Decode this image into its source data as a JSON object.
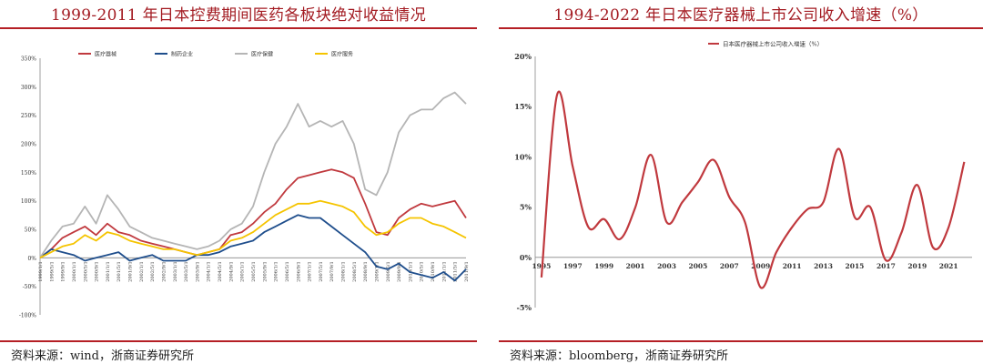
{
  "left": {
    "title": "1999-2011 年日本控费期间医药各板块绝对收益情况",
    "source": "资料来源：wind，浙商证券研究所"
  },
  "right": {
    "title": "1994-2022 年日本医疗器械上市公司收入增速（%）",
    "source": "资料来源：bloomberg，浙商证券研究所"
  },
  "chart_data": [
    {
      "type": "line",
      "title": "1999-2011 年日本控费期间医药各板块绝对收益情况",
      "ylim": [
        -100,
        350
      ],
      "yticks": [
        -100,
        -50,
        0,
        50,
        100,
        150,
        200,
        250,
        300,
        350
      ],
      "ytick_suffix": "%",
      "xtick_labels": [
        "1999/1/1",
        "1999/5/1",
        "1999/9/1",
        "2000/1/1",
        "2000/5/1",
        "2000/9/1",
        "2001/1/1",
        "2001/5/1",
        "2001/9/1",
        "2002/1/1",
        "2002/5/1",
        "2002/9/1",
        "2003/1/1",
        "2003/5/1",
        "2003/9/1",
        "2004/1/1",
        "2004/5/1",
        "2004/9/1",
        "2005/1/1",
        "2005/5/1",
        "2005/9/1",
        "2006/1/1",
        "2006/5/1",
        "2006/9/1",
        "2007/1/1",
        "2007/5/1",
        "2007/9/1",
        "2008/1/1",
        "2008/5/1",
        "2008/9/1",
        "2009/1/1",
        "2009/5/1",
        "2009/9/1",
        "2010/1/1",
        "2010/5/1",
        "2010/9/1",
        "2011/1/1",
        "2011/5/1",
        "2011/9/1"
      ],
      "legend_position": "top",
      "series": [
        {
          "name": "医疗器械",
          "color": "#c0393e",
          "values": [
            0,
            15,
            35,
            45,
            55,
            40,
            60,
            45,
            40,
            30,
            25,
            20,
            15,
            10,
            5,
            10,
            15,
            40,
            45,
            60,
            80,
            95,
            120,
            140,
            145,
            150,
            155,
            150,
            140,
            95,
            45,
            40,
            70,
            85,
            95,
            90,
            95,
            100,
            70
          ]
        },
        {
          "name": "制药企业",
          "color": "#1f4e8c",
          "values": [
            0,
            15,
            10,
            5,
            -5,
            0,
            5,
            10,
            -5,
            0,
            5,
            -5,
            -5,
            -5,
            5,
            5,
            10,
            20,
            25,
            30,
            45,
            55,
            65,
            75,
            70,
            70,
            55,
            40,
            25,
            10,
            -15,
            -20,
            -10,
            -25,
            -30,
            -35,
            -25,
            -40,
            -20
          ]
        },
        {
          "name": "医疗保健",
          "color": "#b5b5b5",
          "values": [
            0,
            30,
            55,
            60,
            90,
            60,
            110,
            85,
            55,
            45,
            35,
            30,
            25,
            20,
            15,
            20,
            30,
            50,
            60,
            90,
            150,
            200,
            230,
            270,
            230,
            240,
            230,
            240,
            200,
            120,
            110,
            150,
            220,
            250,
            260,
            260,
            280,
            290,
            270
          ]
        },
        {
          "name": "医疗服务",
          "color": "#f5c400",
          "values": [
            0,
            10,
            20,
            25,
            40,
            30,
            45,
            40,
            30,
            25,
            20,
            15,
            15,
            10,
            5,
            10,
            15,
            30,
            35,
            45,
            60,
            75,
            85,
            95,
            95,
            100,
            95,
            90,
            80,
            55,
            40,
            45,
            60,
            70,
            70,
            60,
            55,
            45,
            35
          ]
        }
      ]
    },
    {
      "type": "line",
      "title": "1994-2022 年日本医疗器械上市公司收入增速（%）",
      "ylim": [
        -5,
        20
      ],
      "yticks": [
        -5,
        0,
        5,
        10,
        15,
        20
      ],
      "ytick_suffix": "%",
      "x": [
        1995,
        1996,
        1997,
        1998,
        1999,
        2000,
        2001,
        2002,
        2003,
        2004,
        2005,
        2006,
        2007,
        2008,
        2009,
        2010,
        2011,
        2012,
        2013,
        2014,
        2015,
        2016,
        2017,
        2018,
        2019,
        2020,
        2021,
        2022
      ],
      "xtick_labels": [
        "1995",
        "1997",
        "1999",
        "2001",
        "2003",
        "2005",
        "2007",
        "2009",
        "2011",
        "2013",
        "2015",
        "2017",
        "2019",
        "2021"
      ],
      "legend_position": "top",
      "series": [
        {
          "name": "日本医疗器械上市公司收入增速（%）",
          "color": "#c0393e",
          "values": [
            -2,
            16.2,
            9,
            3,
            3.8,
            1.8,
            5,
            10.2,
            3.5,
            5.5,
            7.5,
            9.7,
            6,
            3.5,
            -3,
            0.5,
            3,
            4.8,
            5.5,
            10.8,
            4,
            5,
            -0.3,
            2.5,
            7.2,
            1,
            3,
            9.5
          ]
        }
      ]
    }
  ]
}
